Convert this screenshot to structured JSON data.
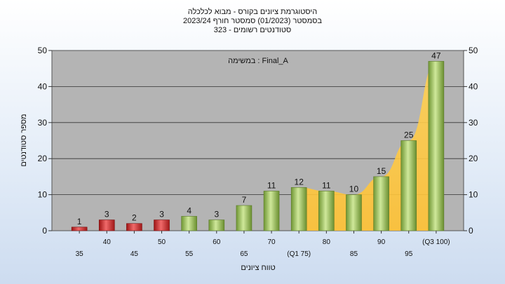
{
  "chart_data": {
    "type": "bar",
    "title_lines": [
      "היסטוגרמת ציונים בקורס - מבוא לכלכלה",
      "בסמסטר  (01/2023)  סמסטר חורף 2023/24",
      "323 - סטודנטים רשומים"
    ],
    "annotation": "במשימה : Final_A",
    "xlabel": "טווח ציונים",
    "ylabel": "מספר סטודנטים",
    "ylim": [
      0,
      50
    ],
    "yticks": [
      0,
      10,
      20,
      30,
      40,
      50
    ],
    "grid": true,
    "categories": [
      "35",
      "40",
      "45",
      "50",
      "55",
      "60",
      "65",
      "70",
      "(Q1 75)",
      "80",
      "85",
      "90",
      "95",
      "(Q3 100)"
    ],
    "values": [
      1,
      3,
      2,
      3,
      4,
      3,
      7,
      11,
      12,
      11,
      10,
      15,
      25,
      47
    ],
    "bar_colors": [
      "red",
      "red",
      "red",
      "red",
      "green",
      "green",
      "green",
      "green",
      "green",
      "green",
      "green",
      "green",
      "green",
      "green"
    ],
    "colors": {
      "red": "#d42a2a",
      "green": "#9cc45a",
      "area": "#ffc94a",
      "plot_bg": "#b4b4b4"
    }
  }
}
